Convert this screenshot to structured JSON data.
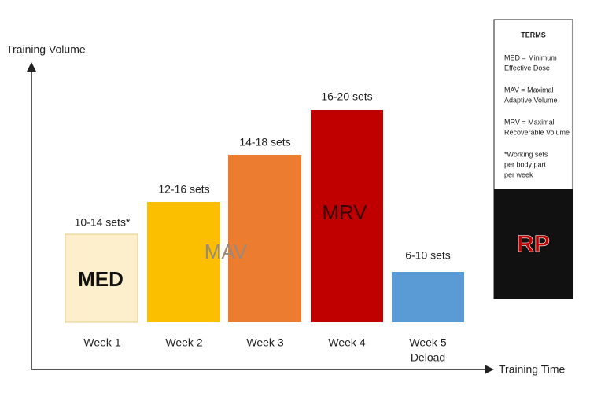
{
  "axes": {
    "y_label": "Training Volume",
    "x_label": "Training Time"
  },
  "bars": [
    {
      "week": "Week 1",
      "sets": "10-14 sets*"
    },
    {
      "week": "Week 2",
      "sets": "12-16 sets"
    },
    {
      "week": "Week 3",
      "sets": "14-18 sets"
    },
    {
      "week": "Week 4",
      "sets": "16-20 sets"
    },
    {
      "week": "Week 5",
      "week_note": "Deload",
      "sets": "6-10 sets"
    }
  ],
  "zones": {
    "med": "MED",
    "mav": "MAV",
    "mrv": "MRV"
  },
  "terms": {
    "title": "TERMS",
    "items": [
      [
        "MED = Minimum",
        "Effective Dose"
      ],
      [
        "MAV = Maximal",
        "Adaptive Volume"
      ],
      [
        "MRV = Maximal",
        "Recoverable Volume"
      ],
      [
        "*Working sets",
        "per body part",
        "per week"
      ]
    ],
    "logo": "RP"
  }
}
